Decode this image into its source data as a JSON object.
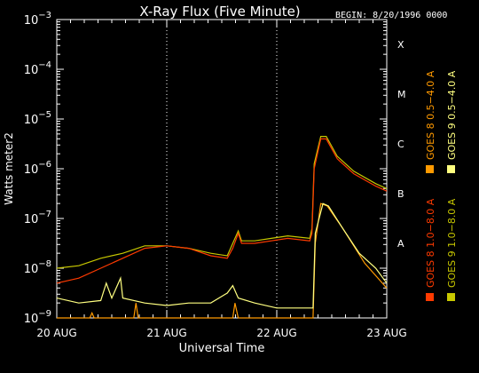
{
  "chart_data": {
    "type": "line",
    "title": "X-Ray Flux (Five Minute)",
    "begin_label": "BEGIN: 8/20/1996 0000",
    "xlabel": "Universal Time",
    "ylabel": "Watts meter2",
    "y_scale": "log",
    "ylim": [
      1e-09,
      0.001
    ],
    "xlim_days": [
      0,
      3
    ],
    "x_ticks": [
      {
        "day": 0,
        "label": "20 AUG"
      },
      {
        "day": 1,
        "label": "21 AUG"
      },
      {
        "day": 2,
        "label": "22 AUG"
      },
      {
        "day": 3,
        "label": "23 AUG"
      }
    ],
    "y_ticks": [
      {
        "exp": -9,
        "base": "10",
        "sup": "−9"
      },
      {
        "exp": -8,
        "base": "10",
        "sup": "−8"
      },
      {
        "exp": -7,
        "base": "10",
        "sup": "−7"
      },
      {
        "exp": -6,
        "base": "10",
        "sup": "−6"
      },
      {
        "exp": -5,
        "base": "10",
        "sup": "−5"
      },
      {
        "exp": -4,
        "base": "10",
        "sup": "−4"
      },
      {
        "exp": -3,
        "base": "10",
        "sup": "−3"
      }
    ],
    "flare_classes": [
      {
        "label": "X",
        "exp": -4
      },
      {
        "label": "M",
        "exp": -5
      },
      {
        "label": "C",
        "exp": -6
      },
      {
        "label": "B",
        "exp": -7
      },
      {
        "label": "A",
        "exp": -8
      }
    ],
    "grid": "dotted vertical at day boundaries",
    "legend_placement": "right, rotated",
    "series": [
      {
        "name": "GOES 8 1.0−8.0 A",
        "color": "#ff3a00",
        "log_points": [
          [
            0,
            -8.3
          ],
          [
            0.2,
            -8.2
          ],
          [
            0.4,
            -8.0
          ],
          [
            0.6,
            -7.8
          ],
          [
            0.8,
            -7.6
          ],
          [
            1.0,
            -7.55
          ],
          [
            1.2,
            -7.6
          ],
          [
            1.4,
            -7.75
          ],
          [
            1.55,
            -7.8
          ],
          [
            1.6,
            -7.6
          ],
          [
            1.65,
            -7.3
          ],
          [
            1.68,
            -7.5
          ],
          [
            1.8,
            -7.5
          ],
          [
            1.95,
            -7.45
          ],
          [
            2.1,
            -7.4
          ],
          [
            2.3,
            -7.45
          ],
          [
            2.32,
            -7.3
          ],
          [
            2.34,
            -6.0
          ],
          [
            2.4,
            -5.4
          ],
          [
            2.45,
            -5.4
          ],
          [
            2.55,
            -5.8
          ],
          [
            2.7,
            -6.1
          ],
          [
            2.9,
            -6.35
          ],
          [
            3.0,
            -6.45
          ]
        ]
      },
      {
        "name": "GOES 9 1.0−8.0 A",
        "color": "#c8c800",
        "log_points": [
          [
            0,
            -8.0
          ],
          [
            0.2,
            -7.95
          ],
          [
            0.4,
            -7.8
          ],
          [
            0.6,
            -7.7
          ],
          [
            0.8,
            -7.55
          ],
          [
            1.0,
            -7.55
          ],
          [
            1.2,
            -7.6
          ],
          [
            1.4,
            -7.7
          ],
          [
            1.55,
            -7.75
          ],
          [
            1.6,
            -7.5
          ],
          [
            1.65,
            -7.25
          ],
          [
            1.68,
            -7.45
          ],
          [
            1.8,
            -7.45
          ],
          [
            1.95,
            -7.4
          ],
          [
            2.1,
            -7.35
          ],
          [
            2.3,
            -7.4
          ],
          [
            2.32,
            -7.2
          ],
          [
            2.34,
            -5.9
          ],
          [
            2.4,
            -5.35
          ],
          [
            2.45,
            -5.35
          ],
          [
            2.55,
            -5.75
          ],
          [
            2.7,
            -6.05
          ],
          [
            2.9,
            -6.3
          ],
          [
            3.0,
            -6.4
          ]
        ]
      },
      {
        "name": "GOES 8 0.5−4.0 A",
        "color": "#ff9a00",
        "log_points": [
          [
            0,
            -9.0
          ],
          [
            0.3,
            -9.0
          ],
          [
            0.32,
            -8.9
          ],
          [
            0.34,
            -9.0
          ],
          [
            0.7,
            -9.0
          ],
          [
            0.72,
            -8.7
          ],
          [
            0.74,
            -9.0
          ],
          [
            1.0,
            -9.0
          ],
          [
            1.6,
            -9.0
          ],
          [
            1.62,
            -8.7
          ],
          [
            1.65,
            -9.0
          ],
          [
            2.3,
            -9.0
          ],
          [
            2.33,
            -9.0
          ],
          [
            2.35,
            -7.5
          ],
          [
            2.4,
            -6.7
          ],
          [
            2.46,
            -6.75
          ],
          [
            2.6,
            -7.2
          ],
          [
            2.8,
            -7.9
          ],
          [
            3.0,
            -8.4
          ]
        ]
      },
      {
        "name": "GOES 9 0.5−4.0 A",
        "color": "#ffff80",
        "log_points": [
          [
            0,
            -8.6
          ],
          [
            0.2,
            -8.7
          ],
          [
            0.4,
            -8.65
          ],
          [
            0.45,
            -8.3
          ],
          [
            0.5,
            -8.6
          ],
          [
            0.58,
            -8.2
          ],
          [
            0.6,
            -8.6
          ],
          [
            0.8,
            -8.7
          ],
          [
            1.0,
            -8.75
          ],
          [
            1.2,
            -8.7
          ],
          [
            1.4,
            -8.7
          ],
          [
            1.55,
            -8.5
          ],
          [
            1.6,
            -8.35
          ],
          [
            1.65,
            -8.6
          ],
          [
            1.8,
            -8.7
          ],
          [
            2.0,
            -8.8
          ],
          [
            2.3,
            -8.8
          ],
          [
            2.33,
            -8.8
          ],
          [
            2.35,
            -7.3
          ],
          [
            2.42,
            -6.7
          ],
          [
            2.47,
            -6.75
          ],
          [
            2.6,
            -7.2
          ],
          [
            2.75,
            -7.7
          ],
          [
            2.9,
            -8.0
          ],
          [
            3.0,
            -8.3
          ]
        ]
      }
    ]
  }
}
